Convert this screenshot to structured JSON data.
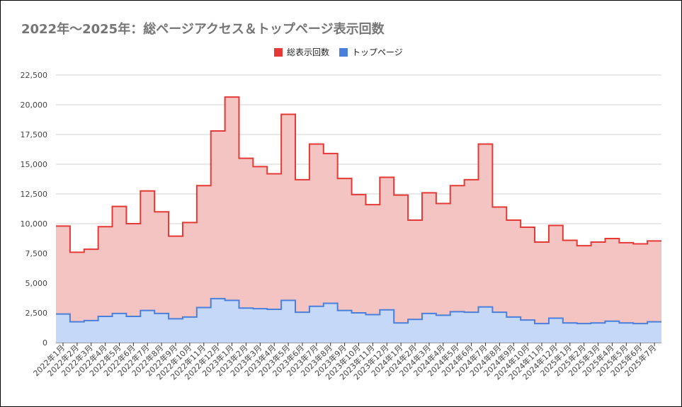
{
  "chart_data": {
    "type": "area",
    "title": "2022年〜2025年：総ページアクセス＆トップページ表示回数",
    "xlabel": "",
    "ylabel": "",
    "ylim": [
      0,
      22500
    ],
    "yticks": [
      0,
      2500,
      5000,
      7500,
      10000,
      12500,
      15000,
      17500,
      20000,
      22500
    ],
    "ytick_labels": [
      "0",
      "2,500",
      "5,000",
      "7,500",
      "10,000",
      "12,500",
      "15,000",
      "17,500",
      "20,000",
      "22,500"
    ],
    "grid": true,
    "legend_position": "top-center",
    "step": true,
    "categories": [
      "2022年1月",
      "2022年2月",
      "2022年3月",
      "2022年4月",
      "2022年5月",
      "2022年6月",
      "2022年7月",
      "2022年8月",
      "2022年9月",
      "2022年10月",
      "2022年11月",
      "2022年12月",
      "2023年1月",
      "2023年2月",
      "2023年3月",
      "2023年4月",
      "2023年5月",
      "2023年6月",
      "2023年7月",
      "2023年8月",
      "2023年9月",
      "2023年10月",
      "2023年11月",
      "2023年12月",
      "2024年1月",
      "2024年2月",
      "2024年3月",
      "2024年4月",
      "2024年5月",
      "2024年6月",
      "2024年7月",
      "2024年8月",
      "2024年9月",
      "2024年10月",
      "2024年11月",
      "2024年12月",
      "2025年1月",
      "2025年2月",
      "2025年3月",
      "2025年4月",
      "2025年5月",
      "2025年6月",
      "2025年7月"
    ],
    "series": [
      {
        "name": "総表示回数",
        "color": "#e53935",
        "fill": "#f4c4c2",
        "values": [
          9800,
          7600,
          7850,
          9750,
          11450,
          10000,
          12750,
          11000,
          8950,
          10100,
          13200,
          17800,
          20650,
          15500,
          14800,
          14200,
          19200,
          13700,
          16700,
          15900,
          13800,
          12450,
          11600,
          13900,
          12400,
          10300,
          12600,
          11700,
          13200,
          13700,
          16700,
          11400,
          10300,
          9700,
          8450,
          9850,
          8600,
          8150,
          8450,
          8750,
          8400,
          8300,
          8550
        ]
      },
      {
        "name": "トップページ",
        "color": "#4a7fdc",
        "fill": "#c5d8f7",
        "values": [
          2400,
          1750,
          1850,
          2200,
          2450,
          2200,
          2700,
          2450,
          2000,
          2150,
          2950,
          3700,
          3550,
          2900,
          2850,
          2800,
          3550,
          2550,
          3050,
          3300,
          2700,
          2500,
          2350,
          2750,
          1650,
          1950,
          2450,
          2300,
          2600,
          2550,
          3000,
          2550,
          2150,
          1900,
          1600,
          2050,
          1650,
          1600,
          1650,
          1800,
          1650,
          1600,
          1750
        ]
      }
    ]
  }
}
